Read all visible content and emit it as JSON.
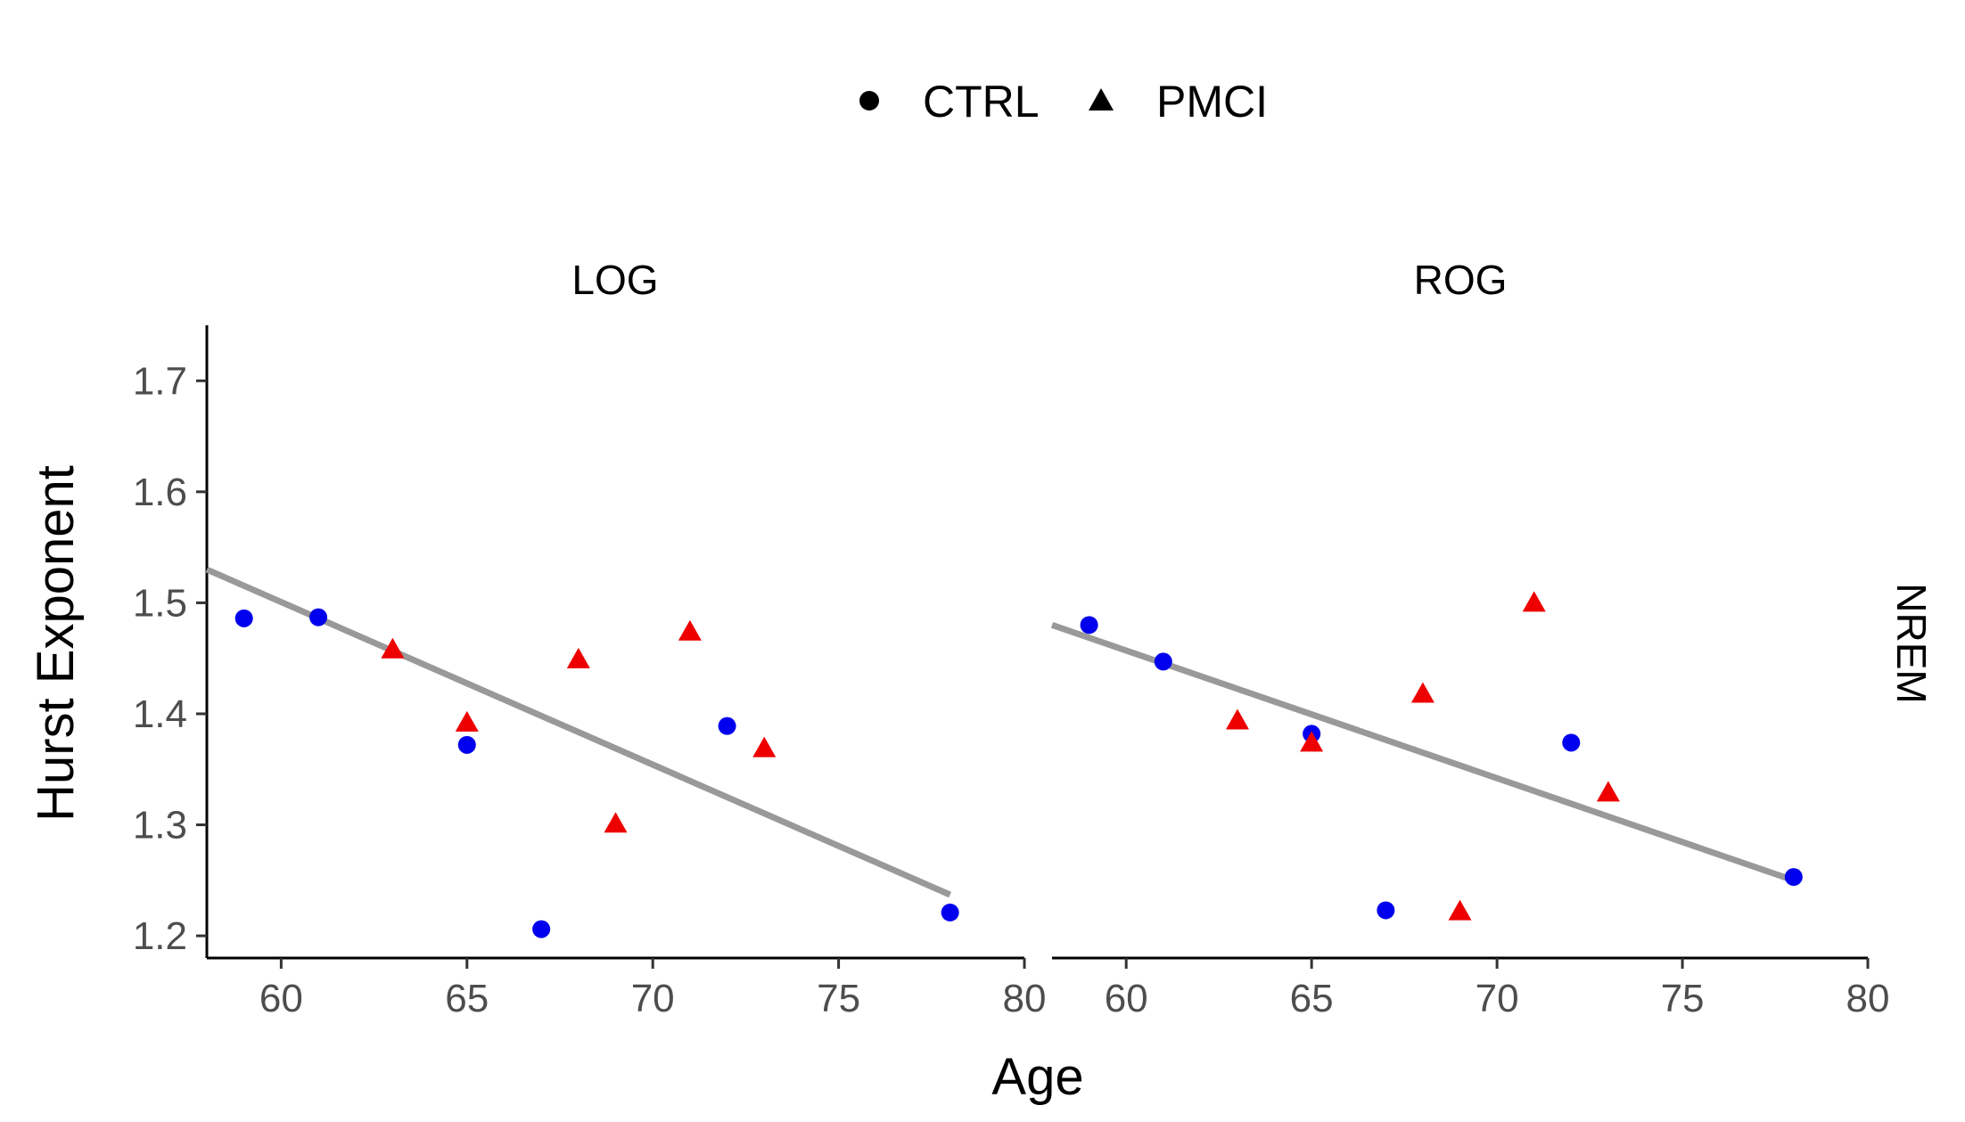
{
  "chart_data": {
    "type": "scatter",
    "xlabel": "Age",
    "ylabel": "Hurst Exponent",
    "row_strip": "NREM",
    "xlim": [
      58,
      80
    ],
    "ylim": [
      1.18,
      1.75
    ],
    "x_ticks": [
      60,
      65,
      70,
      75,
      80
    ],
    "y_ticks": [
      1.2,
      1.3,
      1.4,
      1.5,
      1.6,
      1.7
    ],
    "grid": false,
    "legend": {
      "position": "top",
      "entries": [
        {
          "label": "CTRL",
          "shape": "circle"
        },
        {
          "label": "PMCI",
          "shape": "triangle"
        }
      ]
    },
    "colors": {
      "CTRL": "#0000ee",
      "PMCI": "#ee0000",
      "fit": "#999999"
    },
    "panels": [
      {
        "title": "LOG",
        "series": [
          {
            "name": "CTRL",
            "shape": "circle",
            "points": [
              [
                59,
                1.486
              ],
              [
                61,
                1.487
              ],
              [
                65,
                1.372
              ],
              [
                67,
                1.206
              ],
              [
                72,
                1.389
              ],
              [
                78,
                1.221
              ]
            ]
          },
          {
            "name": "PMCI",
            "shape": "triangle",
            "points": [
              [
                63,
                1.458
              ],
              [
                65,
                1.392
              ],
              [
                68,
                1.449
              ],
              [
                69,
                1.301
              ],
              [
                71,
                1.474
              ],
              [
                73,
                1.369
              ]
            ]
          }
        ],
        "fit": {
          "x": [
            58,
            78
          ],
          "y": [
            1.53,
            1.237
          ]
        }
      },
      {
        "title": "ROG",
        "series": [
          {
            "name": "CTRL",
            "shape": "circle",
            "points": [
              [
                59,
                1.48
              ],
              [
                61,
                1.447
              ],
              [
                65,
                1.382
              ],
              [
                67,
                1.223
              ],
              [
                72,
                1.374
              ],
              [
                78,
                1.253
              ]
            ]
          },
          {
            "name": "PMCI",
            "shape": "triangle",
            "points": [
              [
                63,
                1.394
              ],
              [
                65,
                1.374
              ],
              [
                68,
                1.418
              ],
              [
                69,
                1.222
              ],
              [
                71,
                1.5
              ],
              [
                73,
                1.329
              ]
            ]
          }
        ],
        "fit": {
          "x": [
            58,
            78
          ],
          "y": [
            1.48,
            1.25
          ]
        }
      }
    ]
  }
}
